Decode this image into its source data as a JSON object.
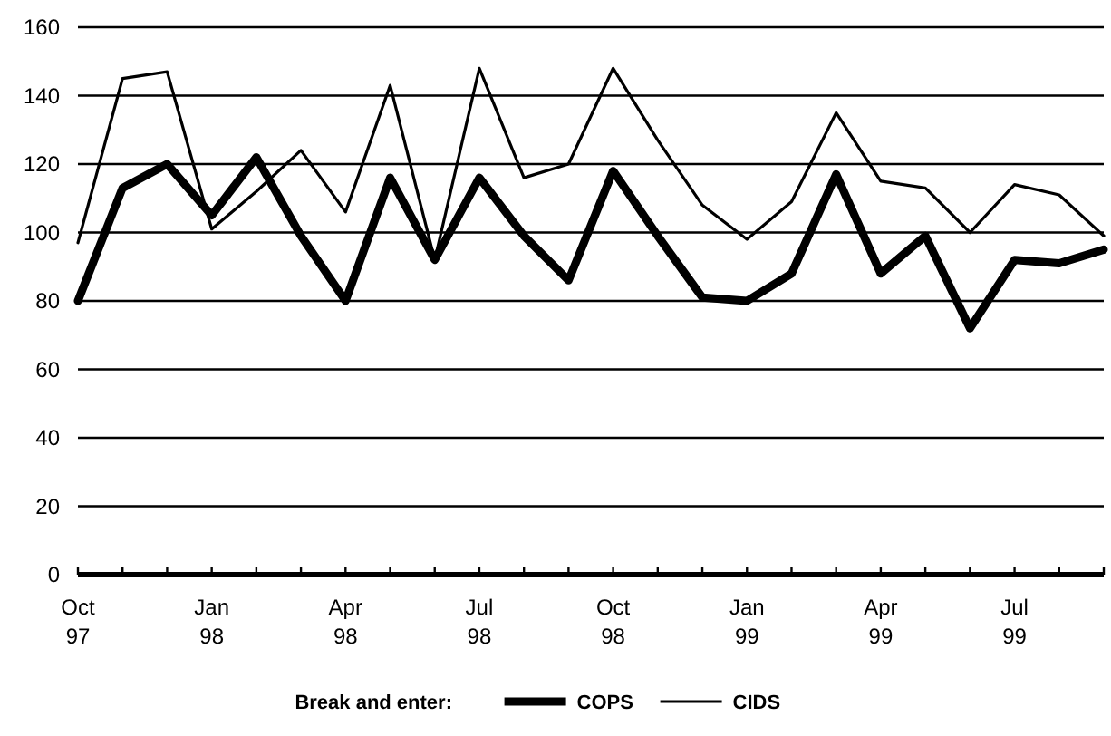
{
  "chart_data": {
    "type": "line",
    "legend_title": "Break and enter:",
    "categories": [
      "Oct 97",
      null,
      null,
      "Jan 98",
      null,
      null,
      "Apr 98",
      null,
      null,
      "Jul 98",
      null,
      null,
      "Oct 98",
      null,
      null,
      "Jan 99",
      null,
      null,
      "Apr 99",
      null,
      null,
      "Jul 99",
      null,
      null
    ],
    "series": [
      {
        "name": "COPS",
        "color": "#000000",
        "values": [
          80,
          113,
          120,
          105,
          122,
          99,
          80,
          116,
          92,
          116,
          99,
          86,
          118,
          99,
          81,
          80,
          88,
          117,
          88,
          99,
          72,
          92,
          91,
          95
        ]
      },
      {
        "name": "CIDS",
        "color": "#000000",
        "values": [
          97,
          145,
          147,
          101,
          112,
          124,
          106,
          143,
          92,
          148,
          116,
          120,
          148,
          127,
          108,
          98,
          109,
          135,
          115,
          113,
          100,
          114,
          111,
          99
        ]
      }
    ],
    "ylim": [
      0,
      160
    ],
    "yticks": [
      0,
      20,
      40,
      60,
      80,
      100,
      120,
      140,
      160
    ],
    "grid": "y",
    "legend": "bottom",
    "marker": "none",
    "line_style": "solid"
  }
}
